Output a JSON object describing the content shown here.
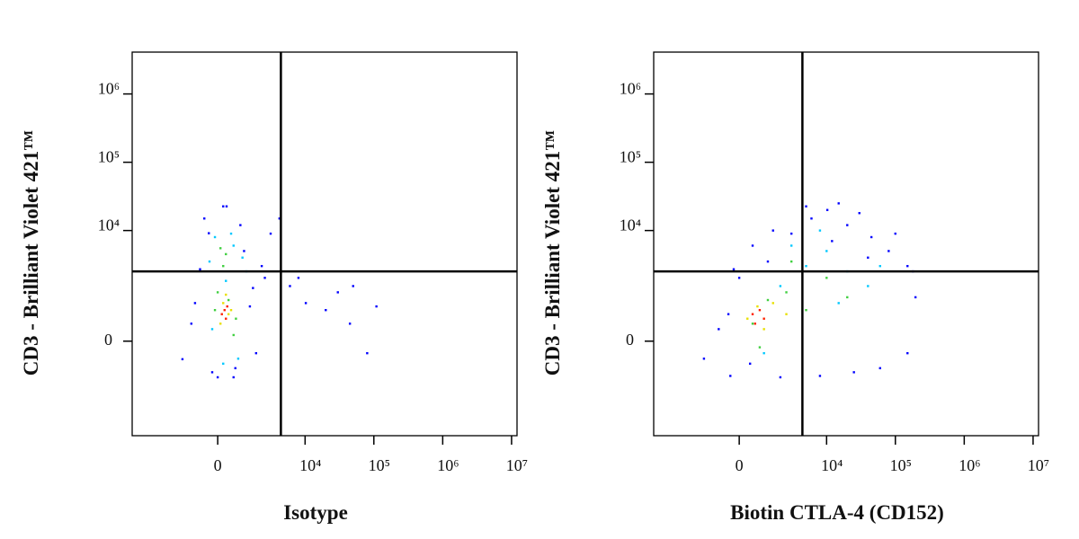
{
  "chart_data": [
    {
      "type": "scatter",
      "xlabel": "Isotype",
      "ylabel": "CD3 - Brilliant Violet 421™",
      "xscale": "biexponential",
      "yscale": "biexponential",
      "xlim": [
        -9400,
        12000000
      ],
      "ylim": [
        -5800,
        4100000
      ],
      "xticks": [
        0,
        {
          "value": 10000,
          "label": "10⁴"
        },
        {
          "value": 100000,
          "label": "10⁵"
        },
        {
          "value": 1000000,
          "label": "10⁶"
        },
        {
          "value": 10000000,
          "label": "10⁷"
        }
      ],
      "yticks": [
        0,
        {
          "value": 10000,
          "label": "10⁴"
        },
        {
          "value": 100000,
          "label": "10⁵"
        },
        {
          "value": 1000000,
          "label": "10⁶"
        }
      ],
      "quadrant": {
        "x": 4400,
        "y": 2500
      },
      "series": [
        {
          "color": "#0000ff",
          "x": [
            -1590,
            -1080,
            -675,
            -325,
            0,
            325,
            675,
            1080,
            1590,
            2230,
            -900,
            1800,
            3080,
            4190,
            6000,
            10250,
            20000,
            44900,
            80000,
            109000,
            8000,
            30000,
            -500,
            200,
            900,
            1400,
            -200,
            600,
            2500,
            50000
          ],
          "y": [
            -310,
            300,
            2690,
            9130,
            -740,
            22600,
            -500,
            5000,
            1400,
            3000,
            800,
            -200,
            9000,
            15000,
            1500,
            800,
            600,
            300,
            -200,
            700,
            2000,
            1200,
            15000,
            22600,
            12000,
            700,
            -600,
            -740,
            2000,
            1500
          ]
        },
        {
          "color": "#00c8ff",
          "x": [
            -300,
            600,
            1000,
            -100,
            300,
            800,
            200,
            -200,
            1200,
            500
          ],
          "y": [
            3500,
            6000,
            4000,
            8000,
            1800,
            -300,
            -400,
            200,
            2500,
            9000
          ]
        },
        {
          "color": "#40d040",
          "x": [
            0,
            400,
            700,
            300,
            100,
            600,
            -100,
            200
          ],
          "y": [
            1200,
            900,
            400,
            4500,
            5500,
            100,
            600,
            3000
          ]
        },
        {
          "color": "#e8e000",
          "x": [
            200,
            400,
            100,
            300,
            500
          ],
          "y": [
            800,
            500,
            300,
            1100,
            600
          ]
        },
        {
          "color": "#ff2000",
          "x": [
            250,
            350,
            150,
            300
          ],
          "y": [
            600,
            700,
            500,
            400
          ]
        }
      ]
    },
    {
      "type": "scatter",
      "xlabel": "Biotin CTLA-4 (CD152)",
      "ylabel": "CD3 - Brilliant Violet 421™",
      "xscale": "biexponential",
      "yscale": "biexponential",
      "xlim": [
        -9400,
        12000000
      ],
      "ylim": [
        -5800,
        4100000
      ],
      "xticks": [
        0,
        {
          "value": 10000,
          "label": "10⁴"
        },
        {
          "value": 100000,
          "label": "10⁵"
        },
        {
          "value": 1000000,
          "label": "10⁶"
        },
        {
          "value": 10000000,
          "label": "10⁷"
        }
      ],
      "yticks": [
        0,
        {
          "value": 10000,
          "label": "10⁴"
        },
        {
          "value": 100000,
          "label": "10⁵"
        },
        {
          "value": 1000000,
          "label": "10⁶"
        }
      ],
      "quadrant": {
        "x": 4400,
        "y": 2500
      },
      "series": [
        {
          "color": "#0000ff",
          "x": [
            -1590,
            -800,
            -325,
            0,
            500,
            1500,
            3000,
            6000,
            10250,
            20000,
            44900,
            80000,
            150000,
            196000,
            150000,
            60000,
            25000,
            8000,
            2000,
            -200,
            400,
            1200,
            5000,
            15000,
            40000,
            100000,
            180000,
            -400,
            30000,
            12000
          ],
          "y": [
            -300,
            200,
            -700,
            2000,
            6000,
            10000,
            9000,
            15000,
            20000,
            12000,
            8000,
            5000,
            3000,
            1000,
            -200,
            -500,
            -600,
            -700,
            -740,
            2690,
            -400,
            3500,
            22600,
            25000,
            4000,
            9000,
            2500,
            500,
            18000,
            7000
          ]
        },
        {
          "color": "#00c8ff",
          "x": [
            2000,
            5000,
            10000,
            20000,
            40000,
            8000,
            3000,
            15000,
            60000,
            1000
          ],
          "y": [
            1500,
            3000,
            5000,
            2500,
            1500,
            10000,
            6000,
            800,
            3000,
            -200
          ]
        },
        {
          "color": "#40d040",
          "x": [
            500,
            1200,
            2500,
            5000,
            10000,
            20000,
            800,
            3000
          ],
          "y": [
            300,
            900,
            1200,
            600,
            2000,
            1000,
            -100,
            3500
          ]
        },
        {
          "color": "#e8e000",
          "x": [
            300,
            700,
            1000,
            1500,
            2500
          ],
          "y": [
            400,
            700,
            200,
            800,
            500
          ]
        },
        {
          "color": "#ff2000",
          "x": [
            500,
            800,
            600,
            1000
          ],
          "y": [
            500,
            600,
            300,
            400
          ]
        }
      ]
    }
  ]
}
